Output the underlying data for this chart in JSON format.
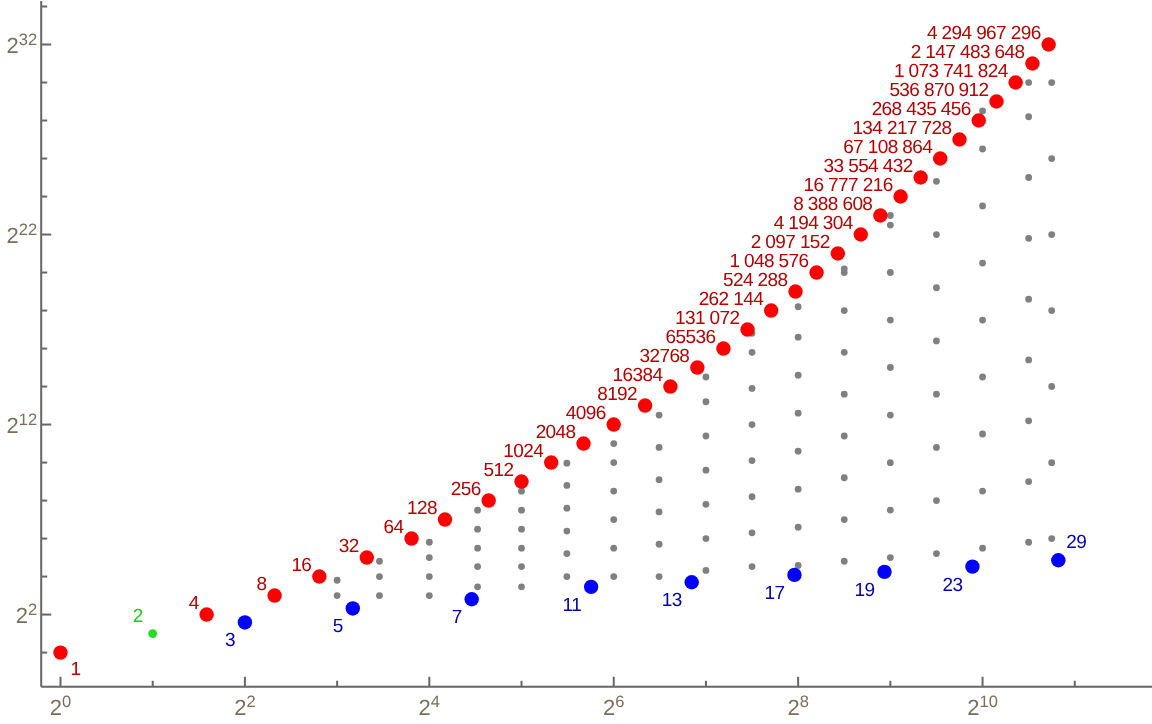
{
  "chart_data": {
    "type": "scatter",
    "log": "xy",
    "marker": "circle",
    "xlim": [
      0.865,
      3660
    ],
    "ylim": [
      0.287,
      21000000000
    ],
    "xticks": [
      {
        "value": 1,
        "label": "2$^{0}$"
      },
      {
        "value": 2,
        "label": null
      },
      {
        "value": 4,
        "label": "2$^{2}$"
      },
      {
        "value": 8,
        "label": null
      },
      {
        "value": 16,
        "label": "2$^{4}$"
      },
      {
        "value": 32,
        "label": null
      },
      {
        "value": 64,
        "label": "2$^{6}$"
      },
      {
        "value": 128,
        "label": null
      },
      {
        "value": 256,
        "label": "2$^{8}$"
      },
      {
        "value": 512,
        "label": null
      },
      {
        "value": 1024,
        "label": "2$^{10}$"
      },
      {
        "value": 2048,
        "label": null
      }
    ],
    "yticks": [
      {
        "value": 1,
        "label": null
      },
      {
        "value": 4,
        "label": "2$^{2}$"
      },
      {
        "value": 16,
        "label": null
      },
      {
        "value": 64,
        "label": null
      },
      {
        "value": 256,
        "label": null
      },
      {
        "value": 1024,
        "label": null
      },
      {
        "value": 4096,
        "label": "2$^{12}$"
      },
      {
        "value": 16384,
        "label": null
      },
      {
        "value": 65536,
        "label": null
      },
      {
        "value": 262144,
        "label": null
      },
      {
        "value": 1048576,
        "label": null
      },
      {
        "value": 4194304,
        "label": "2$^{22}$"
      },
      {
        "value": 16777216,
        "label": null
      },
      {
        "value": 67108864,
        "label": null
      },
      {
        "value": 268435456,
        "label": null
      },
      {
        "value": 1073741824,
        "label": null
      },
      {
        "value": 4294967296,
        "label": "2$^{32}$"
      },
      {
        "value": 17179869184,
        "label": null
      }
    ],
    "series": [
      {
        "color": "#808080",
        "x": [
          8,
          8,
          11,
          11,
          11,
          16,
          16,
          16,
          16,
          23,
          23,
          23,
          23,
          23,
          32,
          32,
          32,
          32,
          32,
          32,
          45,
          45,
          45,
          45,
          45,
          45,
          64,
          64,
          64,
          64,
          64,
          64,
          90,
          90,
          90,
          90,
          90,
          90,
          128,
          128,
          128,
          128,
          128,
          128,
          128,
          181,
          181,
          181,
          181,
          181,
          181,
          181,
          181,
          256,
          256,
          256,
          256,
          256,
          256,
          256,
          256,
          362,
          362,
          362,
          362,
          362,
          362,
          362,
          362,
          362,
          512,
          512,
          512,
          512,
          512,
          512,
          512,
          512,
          512,
          724,
          724,
          724,
          724,
          724,
          724,
          724,
          724,
          724,
          1024,
          1024,
          1024,
          1024,
          1024,
          1024,
          1024,
          1024,
          1024,
          1448,
          1448,
          1448,
          1448,
          1448,
          1448,
          1448,
          1448,
          1448,
          1722,
          1722,
          1722,
          1722,
          1722,
          1722,
          1722
        ],
        "values": [
          8,
          14,
          8,
          16,
          28,
          8,
          16,
          32,
          56,
          11,
          23,
          45,
          90,
          180,
          11,
          23,
          45,
          90,
          180,
          360,
          16,
          37,
          84,
          194,
          445,
          1000,
          16,
          45,
          128,
          362,
          1024,
          2048,
          16,
          52,
          169,
          549,
          1780,
          5790,
          20,
          64,
          223,
          776,
          2700,
          9410,
          23200,
          23,
          79,
          294,
          1100,
          4100,
          15300,
          57000,
          114000,
          24,
          97,
          388,
          1550,
          6210,
          24800,
          99300,
          301000,
          28,
          128,
          588,
          2700,
          12400,
          57100,
          262000,
          1200000,
          1050000,
          32,
          181,
          1020,
          5790,
          32800,
          185000,
          1050000,
          5930000,
          8390000,
          37,
          256,
          1780,
          12400,
          86500,
          602000,
          4190000,
          29200000,
          67100000,
          45,
          362,
          2900,
          23200,
          185000,
          1480000,
          11900000,
          94900000,
          380000000,
          56,
          512,
          4700,
          43200,
          397000,
          3650000,
          33600000,
          308000000,
          1070000000,
          64,
          1020,
          16400,
          262000,
          4190000,
          67100000,
          1070000000
        ]
      },
      {
        "color": "#ff0000",
        "x": [
          1,
          3,
          5,
          7,
          10,
          14,
          18,
          25,
          32,
          40,
          51,
          64,
          81,
          98,
          120,
          146,
          175,
          209,
          251,
          294,
          345,
          410,
          475,
          553,
          643,
          745,
          861,
          995,
          1137,
          1313,
          1490,
          1683
        ],
        "values": [
          1,
          4,
          8,
          16,
          32,
          64,
          128,
          256,
          512,
          1024,
          2048,
          4096,
          8192,
          16384,
          32768,
          65536,
          131072,
          262144,
          524288,
          1048576,
          2097152,
          4194304,
          8388608,
          16777216,
          33554432,
          67108864,
          134217728,
          268435456,
          536870912,
          1073741824,
          2147483648,
          4294967296
        ],
        "value_labels": [
          "1",
          "4",
          "8",
          "16",
          "32",
          "64",
          "128",
          "256",
          "512",
          "1024",
          "2048",
          "4096",
          "8192",
          "16384",
          "32768",
          "65536",
          "131 072",
          "262 144",
          "524 288",
          "1 048 576",
          "2 097 152",
          "4 194 304",
          "8 388 608",
          "16 777 216",
          "33 554 432",
          "67 108 864",
          "134 217 728",
          "268 435 456",
          "536 870 912",
          "1 073 741 824",
          "2 147 483 648",
          "4 294 967 296"
        ]
      },
      {
        "color": "#22dd22",
        "x": [
          2
        ],
        "values": [
          2
        ],
        "value_labels": [
          "2"
        ]
      },
      {
        "color": "#0000ff",
        "x": [
          4,
          9,
          22,
          54,
          115,
          249,
          490,
          949,
          1810
        ],
        "values": [
          3,
          5,
          7,
          11,
          13,
          17,
          19,
          23,
          29
        ],
        "value_labels": [
          "3",
          "5",
          "7",
          "11",
          "13",
          "17",
          "19",
          "23",
          "29"
        ]
      }
    ]
  }
}
